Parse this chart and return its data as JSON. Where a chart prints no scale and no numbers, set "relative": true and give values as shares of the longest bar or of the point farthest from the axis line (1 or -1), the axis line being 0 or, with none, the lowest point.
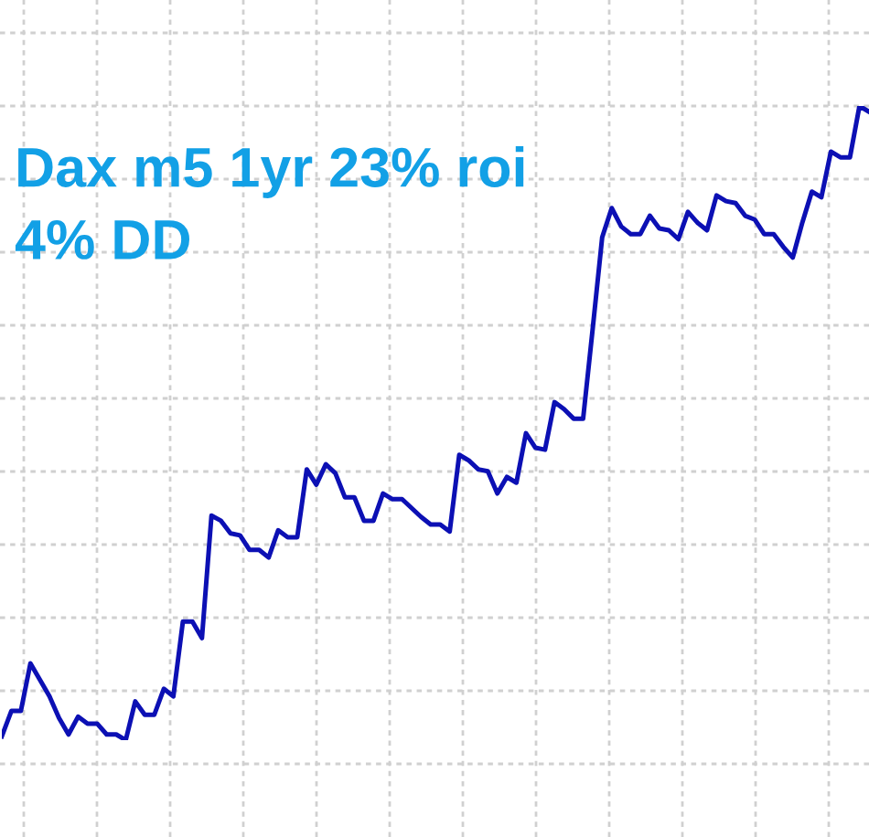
{
  "chart_data": {
    "type": "line",
    "title": "Dax m5 1yr 23% roi\n4% DD",
    "relative": true,
    "grid": true,
    "legend": false,
    "categories": [
      null,
      null,
      null,
      null,
      null,
      null,
      null,
      null,
      null,
      null,
      null,
      null,
      null,
      null,
      null,
      null,
      null,
      null,
      null,
      null,
      null,
      null,
      null,
      null,
      null,
      null,
      null,
      null,
      null,
      null,
      null,
      null,
      null,
      null,
      null,
      null,
      null,
      null,
      null,
      null,
      null,
      null,
      null,
      null,
      null,
      null,
      null,
      null,
      null,
      null,
      null,
      null,
      null,
      null,
      null,
      null,
      null,
      null,
      null,
      null,
      null,
      null,
      null,
      null,
      null,
      null,
      null,
      null,
      null,
      null,
      null,
      null,
      null,
      null,
      null,
      null,
      null,
      null,
      null,
      null,
      null,
      null,
      null,
      null,
      null,
      null,
      null,
      null,
      null,
      null,
      null,
      null
    ],
    "series": [
      {
        "color": "#0c10b4",
        "values": [
          0.006,
          0.046,
          0.046,
          0.121,
          0.095,
          0.069,
          0.035,
          0.009,
          0.037,
          0.026,
          0.026,
          0.009,
          0.009,
          0,
          0.061,
          0.04,
          0.04,
          0.081,
          0.069,
          0.187,
          0.187,
          0.161,
          0.354,
          0.346,
          0.326,
          0.323,
          0.3,
          0.3,
          0.288,
          0.331,
          0.32,
          0.32,
          0.427,
          0.403,
          0.435,
          0.421,
          0.383,
          0.383,
          0.346,
          0.346,
          0.389,
          0.38,
          0.38,
          0.366,
          0.352,
          0.34,
          0.34,
          0.329,
          0.45,
          0.441,
          0.427,
          0.424,
          0.389,
          0.415,
          0.406,
          0.484,
          0.461,
          0.458,
          0.533,
          0.522,
          0.507,
          0.507,
          0.648,
          0.793,
          0.839,
          0.81,
          0.798,
          0.798,
          0.827,
          0.807,
          0.804,
          0.79,
          0.833,
          0.816,
          0.804,
          0.859,
          0.85,
          0.847,
          0.827,
          0.821,
          0.798,
          0.798,
          0.778,
          0.761,
          0.816,
          0.865,
          0.856,
          0.928,
          0.919,
          0.919,
          1,
          0.991
        ]
      }
    ]
  }
}
